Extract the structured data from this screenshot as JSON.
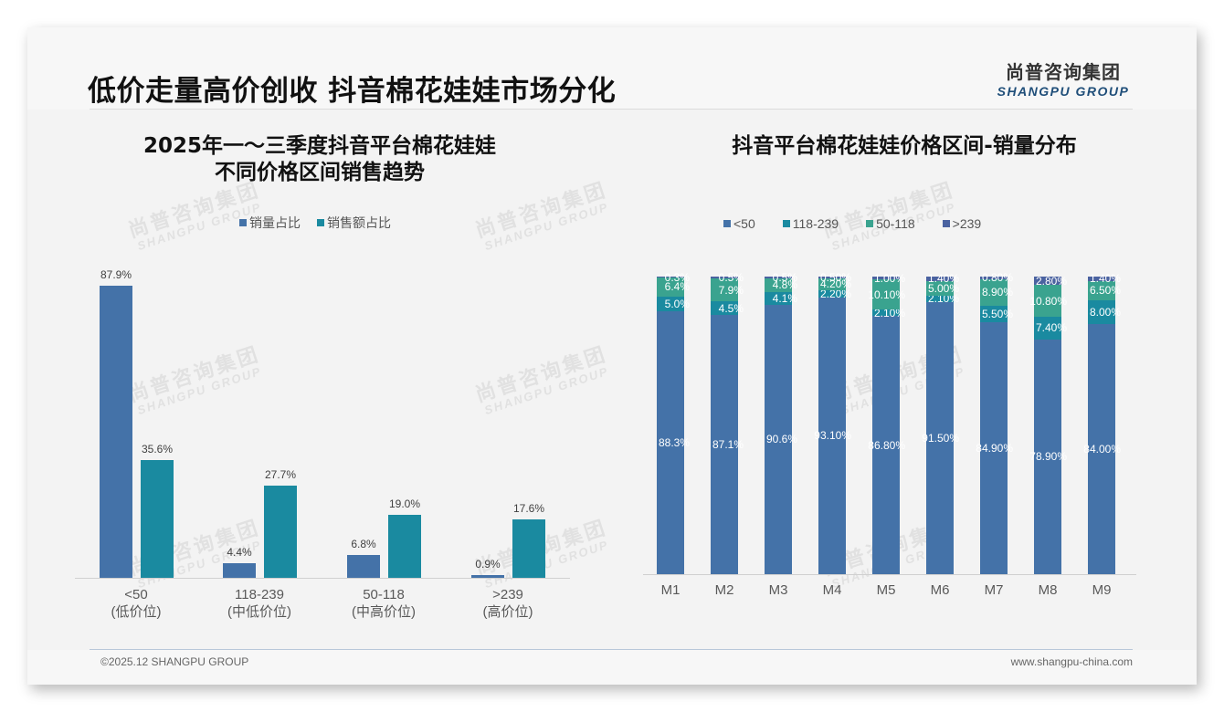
{
  "header": {
    "title": "低价走量高价创收 抖音棉花娃娃市场分化",
    "logo_cn": "尚普咨询集团",
    "logo_en": "SHANGPU GROUP"
  },
  "watermark": {
    "cn": "尚普咨询集团",
    "en": "SHANGPU GROUP"
  },
  "left_chart": {
    "title_line1": "2025年一～三季度抖音平台棉花娃娃",
    "title_line2": "不同价格区间销售趋势",
    "legend": [
      "销量占比",
      "销售额占比"
    ],
    "colors": [
      "#4472a8",
      "#1a8aa0"
    ]
  },
  "right_chart": {
    "title": "抖音平台棉花娃娃价格区间-销量分布",
    "legend": [
      "<50",
      "118-239",
      "50-118",
      ">239"
    ],
    "colors": [
      "#4472a8",
      "#1a8aa0",
      "#3aa38f",
      "#4a62a0"
    ]
  },
  "chart_data": [
    {
      "type": "bar",
      "title": "2025年一～三季度抖音平台棉花娃娃不同价格区间销售趋势",
      "categories": [
        "<50",
        "118-239",
        "50-118",
        ">239"
      ],
      "category_sublabels": [
        "(低价位)",
        "(中低价位)",
        "(中高价位)",
        "(高价位)"
      ],
      "series": [
        {
          "name": "销量占比",
          "values": [
            87.9,
            4.4,
            6.8,
            0.9
          ],
          "labels": [
            "87.9%",
            "4.4%",
            "6.8%",
            "0.9%"
          ]
        },
        {
          "name": "销售额占比",
          "values": [
            35.6,
            27.7,
            19.0,
            17.6
          ],
          "labels": [
            "35.6%",
            "27.7%",
            "19.0%",
            "17.6%"
          ]
        }
      ],
      "xlabel": "",
      "ylabel": "",
      "ylim": [
        0,
        100
      ],
      "grid": false,
      "legend_position": "top"
    },
    {
      "type": "bar",
      "stacked": true,
      "percent": true,
      "title": "抖音平台棉花娃娃价格区间-销量分布",
      "categories": [
        "M1",
        "M2",
        "M3",
        "M4",
        "M5",
        "M6",
        "M7",
        "M8",
        "M9"
      ],
      "series": [
        {
          "name": "<50",
          "values": [
            88.3,
            87.1,
            90.6,
            93.1,
            86.8,
            91.5,
            84.9,
            78.9,
            84.0
          ],
          "labels": [
            "88.3%",
            "87.1%",
            "90.6%",
            "93.10%",
            "86.80%",
            "91.50%",
            "84.90%",
            "78.90%",
            "84.00%"
          ]
        },
        {
          "name": "118-239",
          "values": [
            5.0,
            4.5,
            4.1,
            2.2,
            2.1,
            2.1,
            5.5,
            7.4,
            8.0
          ],
          "labels": [
            "5.0%",
            "4.5%",
            "4.1%",
            "2.20%",
            "2.10%",
            "2.10%",
            "5.50%",
            "7.40%",
            "8.00%"
          ]
        },
        {
          "name": "50-118",
          "values": [
            6.4,
            7.9,
            4.8,
            4.2,
            10.1,
            5.0,
            8.9,
            10.8,
            6.5
          ],
          "labels": [
            "6.4%",
            "7.9%",
            "4.8%",
            "4.20%",
            "10.10%",
            "5.00%",
            "8.90%",
            "10.80%",
            "6.50%"
          ]
        },
        {
          "name": ">239",
          "values": [
            0.3,
            0.5,
            0.5,
            0.5,
            1.0,
            1.4,
            0.8,
            2.8,
            1.4
          ],
          "labels": [
            "0.3%",
            "0.5%",
            "0.5%",
            "0.50%",
            "1.00%",
            "1.40%",
            "0.80%",
            "2.80%",
            "1.40%"
          ]
        }
      ],
      "xlabel": "",
      "ylabel": "",
      "ylim": [
        0,
        100
      ],
      "grid": false,
      "legend_position": "top"
    }
  ],
  "footer": {
    "left": "©2025.12 SHANGPU GROUP",
    "right": "www.shangpu-china.com"
  }
}
